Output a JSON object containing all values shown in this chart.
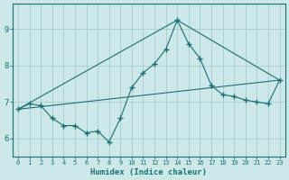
{
  "title": "",
  "xlabel": "Humidex (Indice chaleur)",
  "ylabel": "",
  "bg_color": "#cce8e8",
  "grid_color": "#aacccc",
  "line_color": "#1a7070",
  "xlim": [
    -0.5,
    23.5
  ],
  "ylim": [
    5.5,
    9.7
  ],
  "xticks": [
    0,
    1,
    2,
    3,
    4,
    5,
    6,
    7,
    8,
    9,
    10,
    11,
    12,
    13,
    14,
    15,
    16,
    17,
    18,
    19,
    20,
    21,
    22,
    23
  ],
  "yticks": [
    6,
    7,
    8,
    9
  ],
  "series1_x": [
    0,
    1,
    2,
    3,
    4,
    5,
    6,
    7,
    8,
    9,
    10,
    11,
    12,
    13,
    14,
    15,
    16,
    17,
    18,
    19,
    20,
    21,
    22,
    23
  ],
  "series1_y": [
    6.8,
    6.95,
    6.9,
    6.55,
    6.35,
    6.35,
    6.15,
    6.2,
    5.9,
    6.55,
    7.4,
    7.8,
    8.05,
    8.45,
    9.25,
    8.6,
    8.2,
    7.45,
    7.2,
    7.15,
    7.05,
    7.0,
    6.95,
    7.6
  ],
  "series2_x": [
    0,
    23
  ],
  "series2_y": [
    6.8,
    7.6
  ],
  "series3_x": [
    0,
    14,
    23
  ],
  "series3_y": [
    6.8,
    9.25,
    7.6
  ],
  "xtick_fontsize": 5.0,
  "ytick_fontsize": 6.5,
  "xlabel_fontsize": 6.5
}
